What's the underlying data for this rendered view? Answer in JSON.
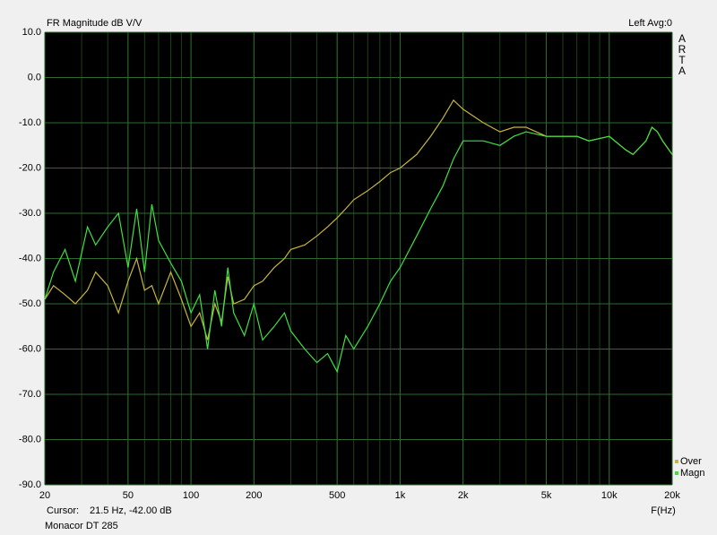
{
  "chart_data": {
    "type": "line",
    "title": "FR Magnitude dB V/V",
    "status": "Left  Avg:0",
    "brand": "ARTA",
    "xlabel": "F(Hz)",
    "cursor_label": "Cursor:",
    "cursor_value": "21.5 Hz, -42.00 dB",
    "footer": "Monacor DT 285",
    "log_x": true,
    "grid": true,
    "legend_position": "lower right",
    "xlim": [
      20,
      20000
    ],
    "ylim": [
      -90,
      10
    ],
    "xticks": [
      20,
      50,
      100,
      200,
      500,
      {
        "value": 1000,
        "label": "1k"
      },
      {
        "value": 2000,
        "label": "2k"
      },
      {
        "value": 5000,
        "label": "5k"
      },
      {
        "value": 10000,
        "label": "10k"
      },
      {
        "value": 20000,
        "label": "20k"
      }
    ],
    "yticks": [
      {
        "value": 10,
        "label": "10.0"
      },
      {
        "value": 0,
        "label": "0.0"
      },
      {
        "value": -10,
        "label": "-10.0"
      },
      {
        "value": -20,
        "label": "-20.0"
      },
      {
        "value": -30,
        "label": "-30.0"
      },
      {
        "value": -40,
        "label": "-40.0"
      },
      {
        "value": -50,
        "label": "-50.0"
      },
      {
        "value": -60,
        "label": "-60.0"
      },
      {
        "value": -70,
        "label": "-70.0"
      },
      {
        "value": -80,
        "label": "-80.0"
      },
      {
        "value": -90,
        "label": "-90.0"
      }
    ],
    "x": [
      20,
      22,
      25,
      28,
      32,
      35,
      40,
      45,
      50,
      55,
      60,
      65,
      70,
      80,
      90,
      100,
      110,
      120,
      130,
      140,
      150,
      160,
      180,
      200,
      220,
      250,
      280,
      300,
      350,
      400,
      450,
      500,
      550,
      600,
      700,
      800,
      900,
      1000,
      1200,
      1400,
      1600,
      1800,
      2000,
      2500,
      3000,
      3500,
      4000,
      5000,
      6000,
      7000,
      8000,
      10000,
      12000,
      13000,
      15000,
      16000,
      17000,
      18000,
      20000
    ],
    "series": [
      {
        "name": "Over",
        "color": "#c8b440",
        "values": [
          -49,
          -46,
          -48,
          -50,
          -47,
          -43,
          -46,
          -52,
          -45,
          -40,
          -47,
          -46,
          -50,
          -43,
          -49,
          -55,
          -52,
          -58,
          -50,
          -54,
          -44,
          -50,
          -49,
          -46,
          -45,
          -42,
          -40,
          -38,
          -37,
          -35,
          -33,
          -31,
          -29,
          -27,
          -25,
          -23,
          -21,
          -20,
          -17,
          -13,
          -9,
          -5,
          -7,
          -10,
          -12,
          -11,
          -11,
          -13,
          -13,
          -13,
          -14,
          -13,
          -16,
          -17,
          -14,
          -11,
          -12,
          -14,
          -17
        ]
      },
      {
        "name": "Magn",
        "color": "#40e040",
        "values": [
          -49,
          -43,
          -38,
          -45,
          -33,
          -37,
          -33,
          -30,
          -42,
          -29,
          -43,
          -28,
          -36,
          -41,
          -45,
          -52,
          -48,
          -60,
          -47,
          -55,
          -42,
          -52,
          -57,
          -50,
          -58,
          -55,
          -52,
          -56,
          -60,
          -63,
          -61,
          -65,
          -57,
          -60,
          -55,
          -50,
          -45,
          -42,
          -35,
          -29,
          -24,
          -18,
          -14,
          -14,
          -15,
          -13,
          -12,
          -13,
          -13,
          -13,
          -14,
          -13,
          -16,
          -17,
          -14,
          -11,
          -12,
          -14,
          -17
        ]
      }
    ]
  }
}
